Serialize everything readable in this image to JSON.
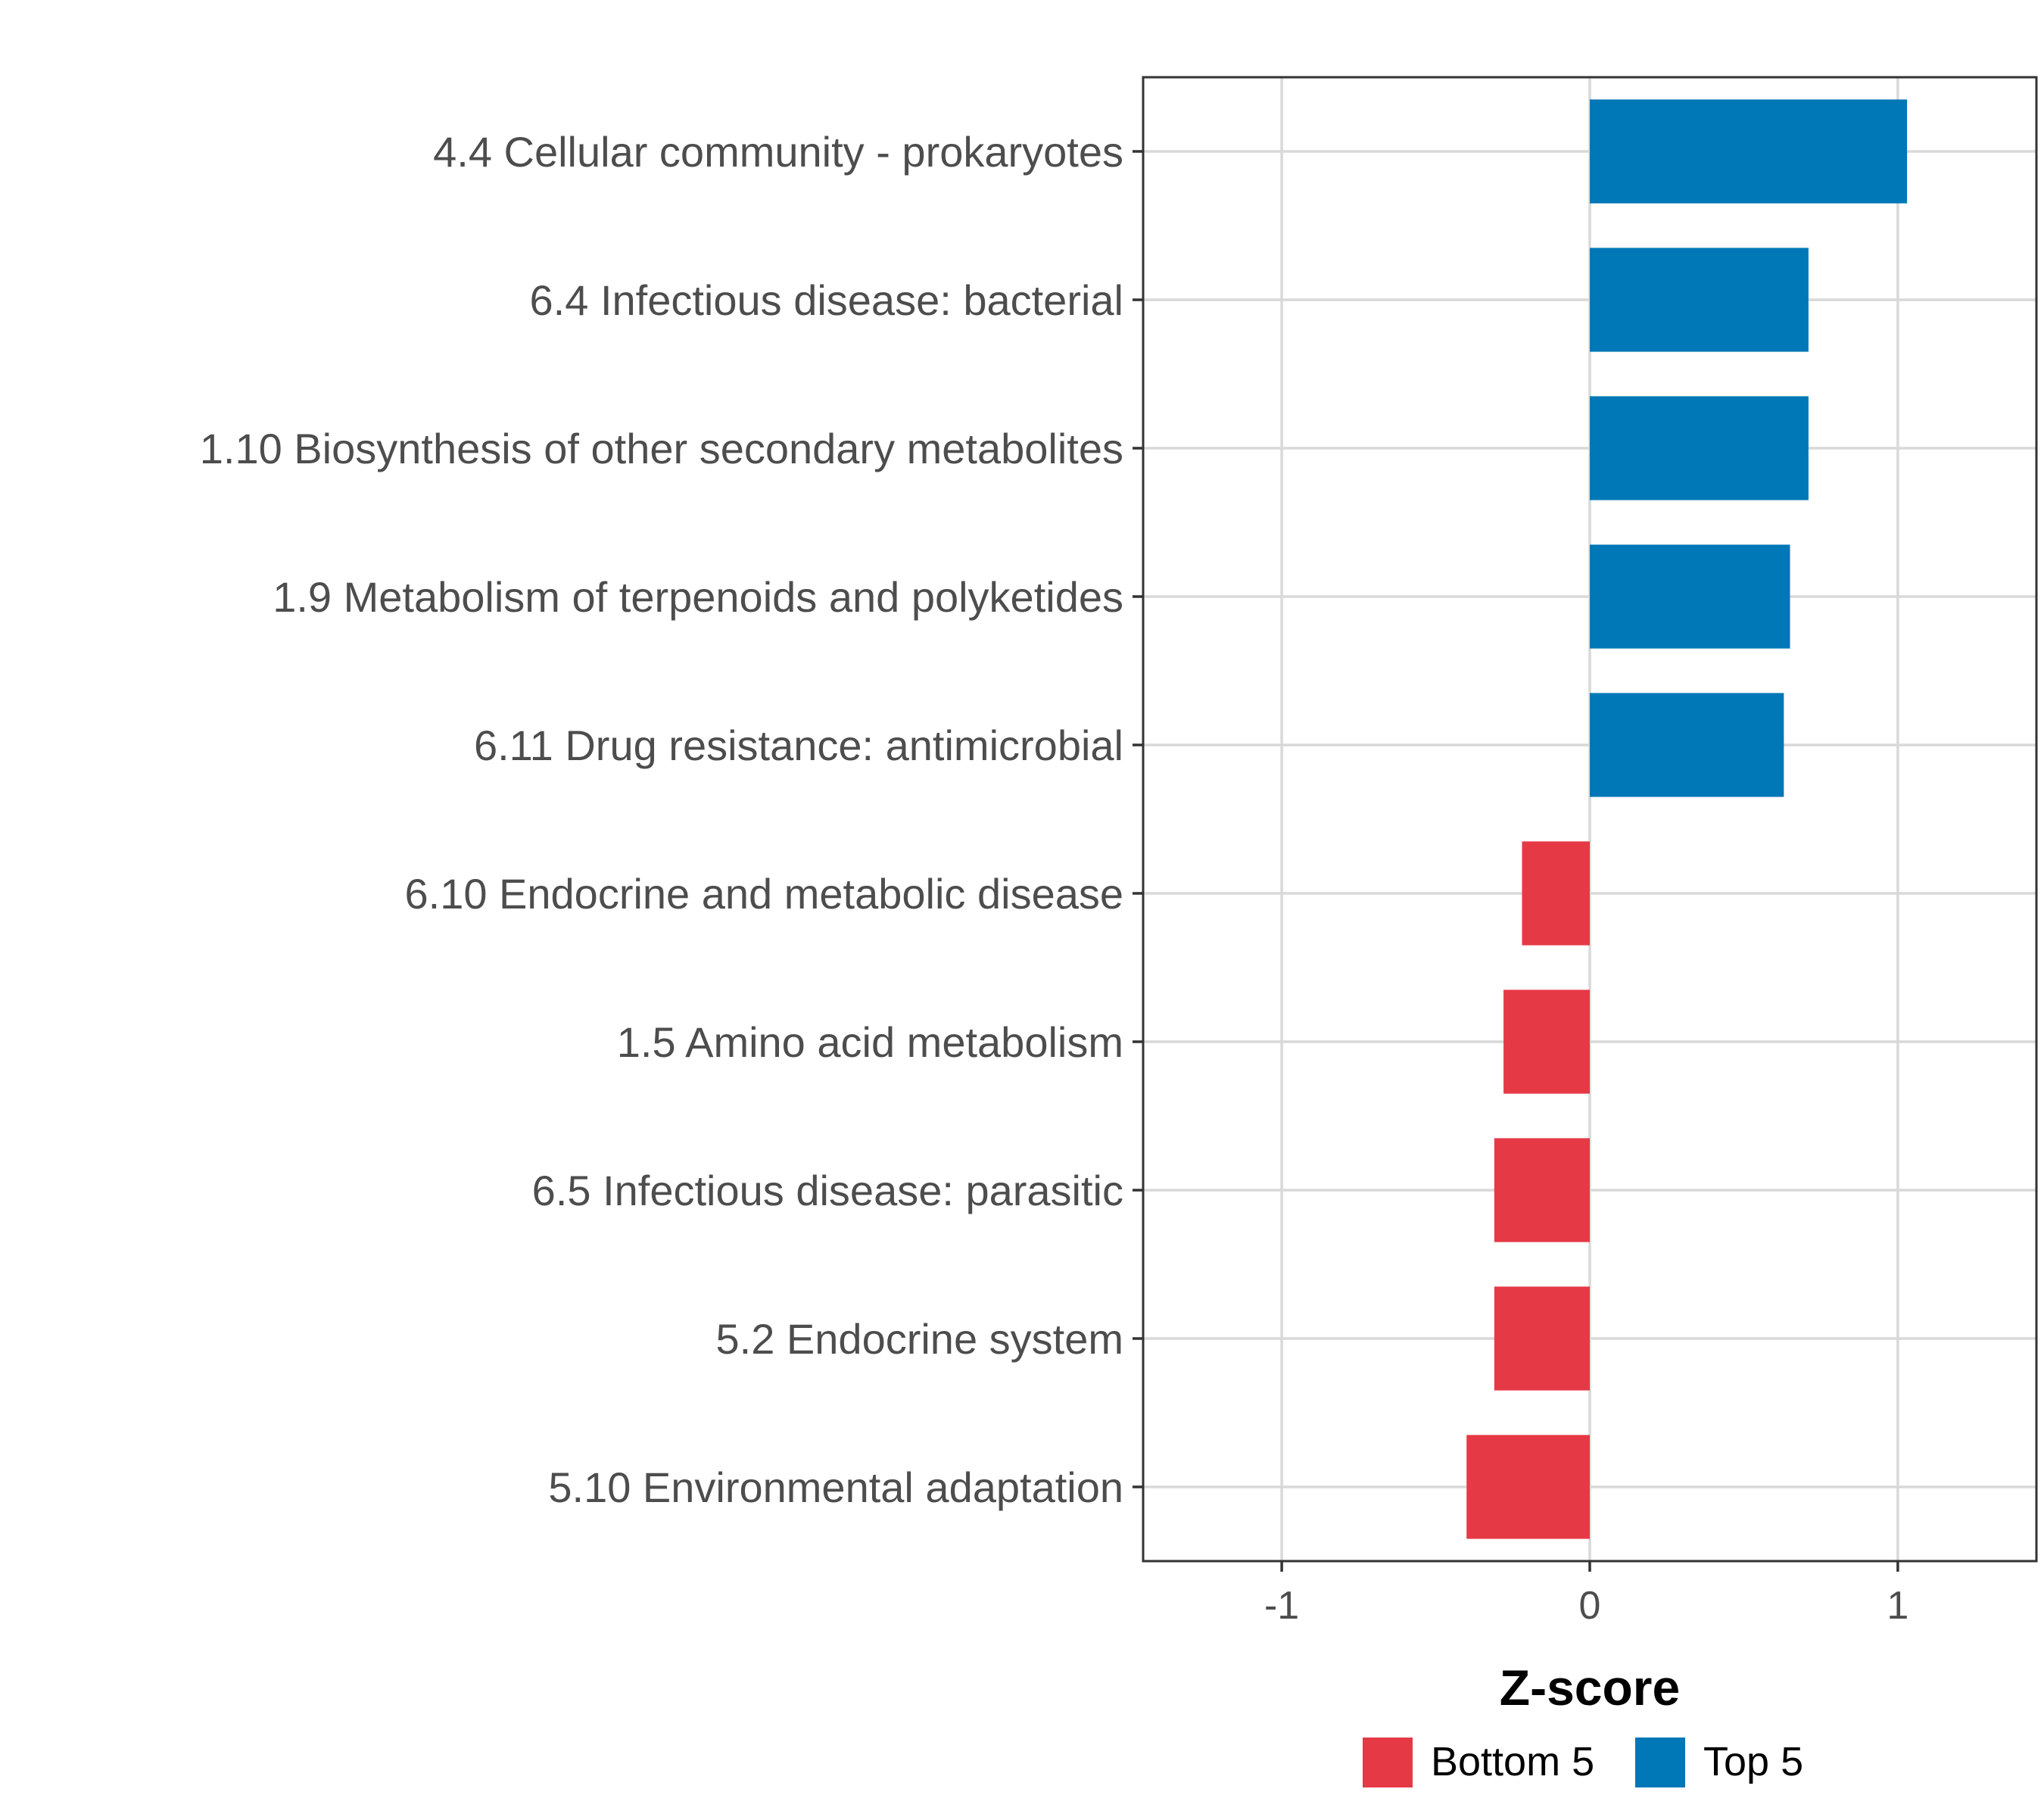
{
  "chart_data": {
    "type": "bar",
    "orientation": "horizontal",
    "title": "",
    "xlabel": "Z-score",
    "ylabel": "",
    "xlim": [
      -1.45,
      1.45
    ],
    "xticks": [
      -1,
      0,
      1
    ],
    "xtick_labels": [
      "-1",
      "0",
      "1"
    ],
    "grid": true,
    "legend_position": "bottom",
    "categories": [
      "4.4 Cellular community - prokaryotes",
      "6.4 Infectious disease: bacterial",
      "1.10 Biosynthesis of other secondary metabolites",
      "1.9 Metabolism of terpenoids and polyketides",
      "6.11 Drug resistance: antimicrobial",
      "6.10 Endocrine and metabolic disease",
      "1.5 Amino acid metabolism",
      "6.5 Infectious disease: parasitic",
      "5.2 Endocrine system",
      "5.10 Environmental adaptation"
    ],
    "values": [
      1.03,
      0.71,
      0.71,
      0.65,
      0.63,
      -0.22,
      -0.28,
      -0.31,
      -0.31,
      -0.4
    ],
    "groups": [
      "Top 5",
      "Top 5",
      "Top 5",
      "Top 5",
      "Top 5",
      "Bottom 5",
      "Bottom 5",
      "Bottom 5",
      "Bottom 5",
      "Bottom 5"
    ],
    "legend": [
      {
        "name": "Bottom 5",
        "color": "#e63946"
      },
      {
        "name": "Top 5",
        "color": "#0077b6"
      }
    ]
  }
}
